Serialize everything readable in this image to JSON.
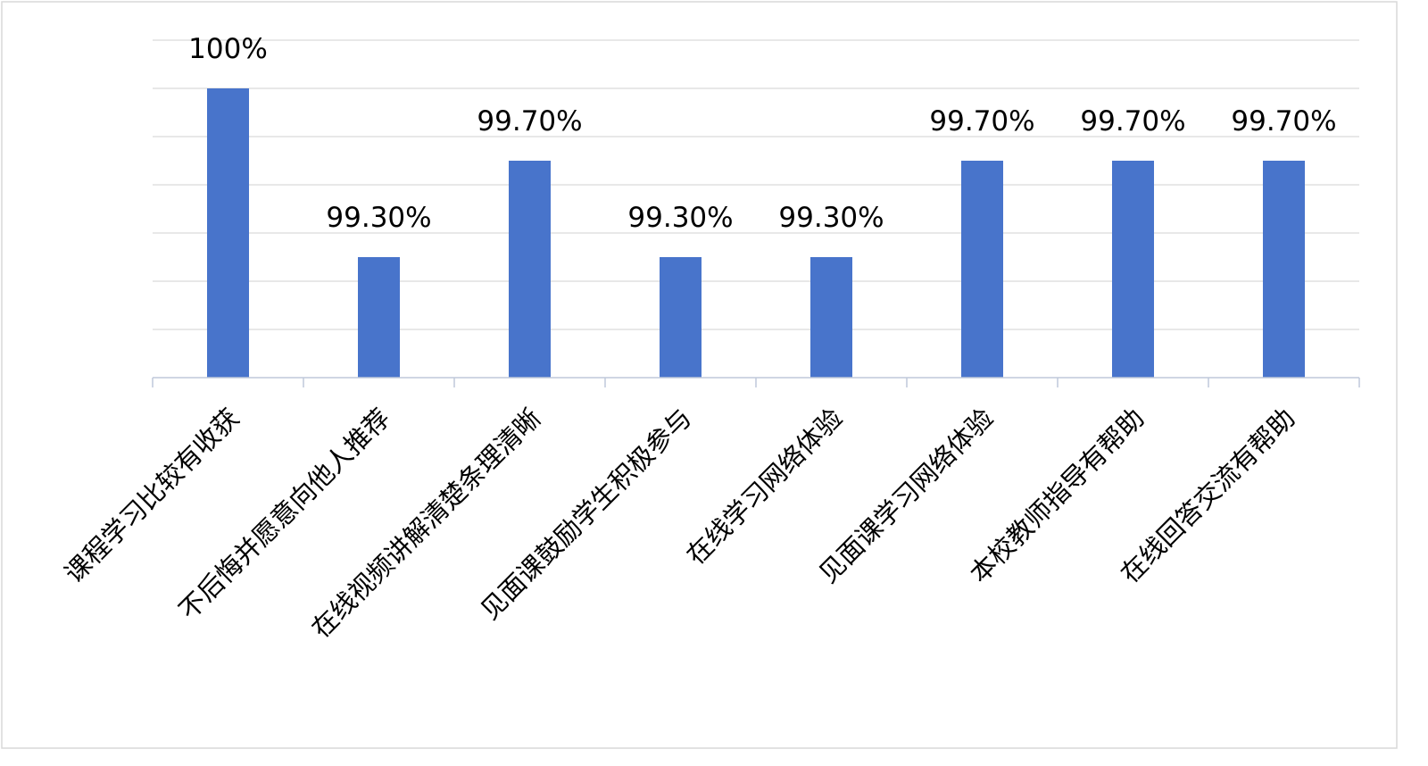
{
  "chart_data": {
    "type": "bar",
    "categories": [
      "课程学习比较有收获",
      "不后悔并愿意向他人推荐",
      "在线视频讲解清楚条理清晰",
      "见面课鼓励学生积极参与",
      "在线学习网络体验",
      "见面课学习网络体验",
      "本校教师指导有帮助",
      "在线回答交流有帮助"
    ],
    "values": [
      100,
      99.3,
      99.7,
      99.3,
      99.3,
      99.7,
      99.7,
      99.7
    ],
    "data_labels": [
      "100%",
      "99.30%",
      "99.70%",
      "99.30%",
      "99.30%",
      "99.70%",
      "99.70%",
      "99.70%"
    ],
    "title": "",
    "xlabel": "",
    "ylabel": "",
    "ylim": [
      98.8,
      100.2
    ],
    "ytick_step": 0.2,
    "y_tick_labels_shown": false,
    "grid": true,
    "legend": "none",
    "colors": {
      "bar": "#4874CB",
      "grid": "#D9D9D9",
      "axis": "#BFC9DA",
      "border": "#D9D9D9"
    }
  }
}
